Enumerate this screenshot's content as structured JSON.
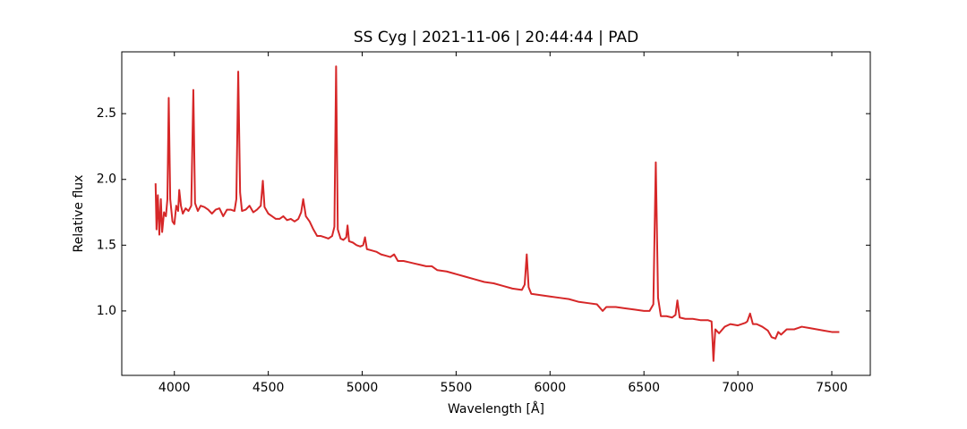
{
  "chart_data": {
    "type": "line",
    "title": "SS Cyg | 2021-11-06 | 20:44:44 | PAD",
    "xlabel": "Wavelength [Å]",
    "ylabel": "Relative flux",
    "color": "#d62728",
    "xlim": [
      3720,
      7705
    ],
    "ylim": [
      0.51,
      2.97
    ],
    "xticks": [
      4000,
      4500,
      5000,
      5500,
      6000,
      6500,
      7000,
      7500
    ],
    "yticks": [
      {
        "value": 1,
        "label": "1.0"
      },
      1.5,
      {
        "value": 2,
        "label": "2.0"
      },
      2.5
    ],
    "x": [
      3900,
      3905,
      3912,
      3920,
      3928,
      3935,
      3945,
      3955,
      3963,
      3970,
      3978,
      3990,
      4000,
      4010,
      4020,
      4026,
      4035,
      4045,
      4060,
      4075,
      4090,
      4101,
      4110,
      4125,
      4140,
      4160,
      4180,
      4200,
      4220,
      4240,
      4260,
      4280,
      4300,
      4320,
      4330,
      4340,
      4350,
      4360,
      4380,
      4400,
      4420,
      4440,
      4460,
      4471,
      4480,
      4500,
      4520,
      4540,
      4560,
      4580,
      4600,
      4620,
      4640,
      4660,
      4675,
      4686,
      4700,
      4720,
      4740,
      4760,
      4780,
      4800,
      4820,
      4840,
      4852,
      4861,
      4870,
      4885,
      4900,
      4915,
      4922,
      4930,
      4950,
      4970,
      4990,
      5005,
      5015,
      5025,
      5050,
      5075,
      5100,
      5125,
      5150,
      5170,
      5190,
      5220,
      5250,
      5280,
      5310,
      5340,
      5370,
      5400,
      5450,
      5500,
      5550,
      5600,
      5650,
      5700,
      5750,
      5800,
      5850,
      5865,
      5876,
      5886,
      5900,
      5950,
      6000,
      6050,
      6100,
      6150,
      6200,
      6250,
      6280,
      6300,
      6350,
      6400,
      6450,
      6500,
      6530,
      6550,
      6563,
      6575,
      6590,
      6620,
      6650,
      6668,
      6678,
      6690,
      6720,
      6760,
      6800,
      6840,
      6860,
      6866,
      6870,
      6875,
      6880,
      6900,
      6930,
      6960,
      7000,
      7040,
      7050,
      7065,
      7080,
      7100,
      7130,
      7160,
      7180,
      7200,
      7215,
      7230,
      7260,
      7300,
      7340,
      7380,
      7420,
      7460,
      7500,
      7540
    ],
    "values": [
      1.97,
      1.62,
      1.88,
      1.58,
      1.85,
      1.6,
      1.75,
      1.72,
      1.85,
      2.62,
      1.85,
      1.68,
      1.66,
      1.8,
      1.76,
      1.92,
      1.8,
      1.74,
      1.78,
      1.76,
      1.8,
      2.68,
      1.82,
      1.76,
      1.8,
      1.79,
      1.77,
      1.74,
      1.77,
      1.78,
      1.72,
      1.77,
      1.77,
      1.76,
      1.85,
      2.82,
      1.9,
      1.76,
      1.77,
      1.8,
      1.75,
      1.77,
      1.8,
      1.99,
      1.79,
      1.74,
      1.72,
      1.7,
      1.7,
      1.72,
      1.69,
      1.7,
      1.68,
      1.7,
      1.75,
      1.85,
      1.72,
      1.68,
      1.62,
      1.57,
      1.57,
      1.56,
      1.55,
      1.57,
      1.64,
      2.86,
      1.62,
      1.55,
      1.54,
      1.56,
      1.65,
      1.53,
      1.52,
      1.5,
      1.49,
      1.5,
      1.56,
      1.47,
      1.46,
      1.45,
      1.43,
      1.42,
      1.41,
      1.43,
      1.38,
      1.38,
      1.37,
      1.36,
      1.35,
      1.34,
      1.34,
      1.31,
      1.3,
      1.28,
      1.26,
      1.24,
      1.22,
      1.21,
      1.19,
      1.17,
      1.16,
      1.2,
      1.43,
      1.18,
      1.13,
      1.12,
      1.11,
      1.1,
      1.09,
      1.07,
      1.06,
      1.05,
      1.0,
      1.03,
      1.03,
      1.02,
      1.01,
      1.0,
      1.0,
      1.05,
      2.13,
      1.1,
      0.96,
      0.96,
      0.95,
      0.97,
      1.08,
      0.95,
      0.94,
      0.94,
      0.93,
      0.93,
      0.92,
      0.75,
      0.62,
      0.75,
      0.86,
      0.83,
      0.88,
      0.9,
      0.89,
      0.91,
      0.92,
      0.98,
      0.9,
      0.9,
      0.88,
      0.85,
      0.8,
      0.79,
      0.84,
      0.82,
      0.86,
      0.86,
      0.88,
      0.87,
      0.86,
      0.85,
      0.84,
      0.84
    ]
  }
}
